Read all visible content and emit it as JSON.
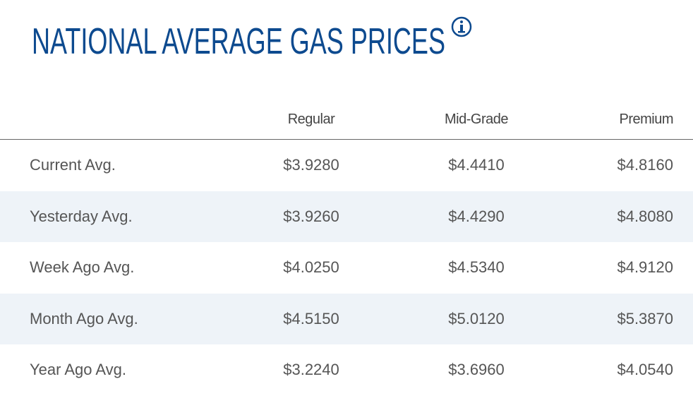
{
  "header": {
    "title": "NATIONAL AVERAGE GAS PRICES"
  },
  "table": {
    "columns": [
      "Regular",
      "Mid-Grade",
      "Premium"
    ],
    "rows": [
      [
        "Current Avg.",
        "$3.9280",
        "$4.4410",
        "$4.8160"
      ],
      [
        "Yesterday Avg.",
        "$3.9260",
        "$4.4290",
        "$4.8080"
      ],
      [
        "Week Ago Avg.",
        "$4.0250",
        "$4.5340",
        "$4.9120"
      ],
      [
        "Month Ago Avg.",
        "$4.5150",
        "$5.0120",
        "$5.3870"
      ],
      [
        "Year Ago Avg.",
        "$3.2240",
        "$3.6960",
        "$4.0540"
      ]
    ]
  }
}
